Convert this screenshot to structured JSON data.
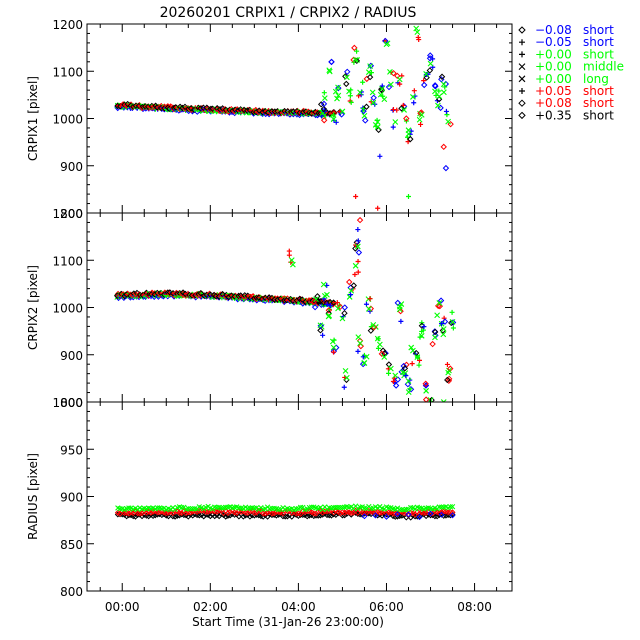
{
  "chart_data": {
    "title": "20260201 CRPIX1 / CRPIX2 / RADIUS",
    "xlabel": "Start Time (31-Jan-26 23:00:00)",
    "x_ticks": [
      "00:00",
      "02:00",
      "04:00",
      "06:00",
      "08:00"
    ],
    "x_range_hours": [
      -0.8,
      8.85
    ],
    "legend": {
      "placement": "right",
      "items": [
        {
          "symbol": "diamond",
          "color": "#0000ff",
          "offset": "−0.08",
          "length": "short"
        },
        {
          "symbol": "plus",
          "color": "#0000ff",
          "offset": "−0.05",
          "length": "short"
        },
        {
          "symbol": "plus",
          "color": "#00ff00",
          "offset": "+0.00",
          "length": "short"
        },
        {
          "symbol": "cross",
          "color": "#00ff00",
          "offset": "+0.00",
          "length": "middle"
        },
        {
          "symbol": "cross",
          "color": "#00ff00",
          "offset": "+0.00",
          "length": "long"
        },
        {
          "symbol": "plus",
          "color": "#ff0000",
          "offset": "+0.05",
          "length": "short"
        },
        {
          "symbol": "diamond",
          "color": "#ff0000",
          "offset": "+0.08",
          "length": "short"
        },
        {
          "symbol": "diamond",
          "color": "#000000",
          "offset": "+0.35",
          "length": "short"
        }
      ]
    },
    "panels": [
      {
        "ylabel": "CRPIX1 [pixel]",
        "ylim": [
          800,
          1200
        ],
        "y_ticks": [
          "800",
          "900",
          "1000",
          "1100",
          "1200"
        ],
        "trend": [
          [
            -0.1,
            1027
          ],
          [
            1.0,
            1022
          ],
          [
            2.0,
            1018
          ],
          [
            3.0,
            1014
          ],
          [
            4.0,
            1012
          ],
          [
            4.8,
            1011
          ]
        ],
        "scatter": [
          [
            4.55,
            1010
          ],
          [
            4.6,
            1040
          ],
          [
            4.7,
            1105
          ],
          [
            4.8,
            1000
          ],
          [
            4.9,
            1060
          ],
          [
            5.0,
            1020
          ],
          [
            5.1,
            1080
          ],
          [
            5.15,
            1050
          ],
          [
            5.3,
            1130
          ],
          [
            5.4,
            1060
          ],
          [
            5.5,
            1010
          ],
          [
            5.6,
            1100
          ],
          [
            5.7,
            1040
          ],
          [
            5.8,
            980
          ],
          [
            5.9,
            1060
          ],
          [
            6.0,
            1150
          ],
          [
            6.1,
            1080
          ],
          [
            6.2,
            1000
          ],
          [
            6.3,
            1090
          ],
          [
            6.4,
            1010
          ],
          [
            6.5,
            970
          ],
          [
            6.6,
            1040
          ],
          [
            6.7,
            1180
          ],
          [
            6.8,
            1000
          ],
          [
            6.9,
            1090
          ],
          [
            7.0,
            1120
          ],
          [
            7.1,
            1060
          ],
          [
            7.2,
            1040
          ],
          [
            7.3,
            1070
          ],
          [
            7.4,
            1000
          ]
        ],
        "outliers": [
          [
            5.3,
            835
          ],
          [
            5.8,
            810
          ],
          [
            5.85,
            920
          ],
          [
            6.5,
            835
          ],
          [
            6.45,
            1000
          ],
          [
            7.3,
            940
          ],
          [
            7.35,
            895
          ]
        ]
      },
      {
        "ylabel": "CRPIX2 [pixel]",
        "ylim": [
          800,
          1200
        ],
        "y_ticks": [
          "800",
          "900",
          "1000",
          "1100",
          "1200"
        ],
        "trend": [
          [
            -0.1,
            1025
          ],
          [
            1.0,
            1028
          ],
          [
            2.0,
            1025
          ],
          [
            3.0,
            1020
          ],
          [
            4.0,
            1014
          ],
          [
            4.8,
            1008
          ]
        ],
        "scatter": [
          [
            3.85,
            1105
          ],
          [
            4.4,
            1010
          ],
          [
            4.5,
            960
          ],
          [
            4.6,
            1030
          ],
          [
            4.7,
            990
          ],
          [
            4.8,
            920
          ],
          [
            4.9,
            1000
          ],
          [
            5.0,
            980
          ],
          [
            5.1,
            850
          ],
          [
            5.2,
            1040
          ],
          [
            5.3,
            1080
          ],
          [
            5.35,
            1130
          ],
          [
            5.4,
            920
          ],
          [
            5.5,
            880
          ],
          [
            5.6,
            1000
          ],
          [
            5.7,
            960
          ],
          [
            5.85,
            930
          ],
          [
            5.95,
            900
          ],
          [
            6.1,
            880
          ],
          [
            6.2,
            850
          ],
          [
            6.3,
            990
          ],
          [
            6.4,
            860
          ],
          [
            6.5,
            840
          ],
          [
            6.6,
            900
          ],
          [
            6.7,
            890
          ],
          [
            6.8,
            950
          ],
          [
            6.9,
            830
          ],
          [
            7.0,
            810
          ],
          [
            7.1,
            940
          ],
          [
            7.2,
            1000
          ],
          [
            7.3,
            960
          ],
          [
            7.4,
            860
          ],
          [
            7.5,
            975
          ]
        ],
        "outliers": [
          [
            5.4,
            1185
          ],
          [
            5.35,
            1165
          ],
          [
            6.9,
            805
          ],
          [
            7.3,
            800
          ]
        ]
      },
      {
        "ylabel": "RADIUS [pixel]",
        "ylim": [
          800,
          1000
        ],
        "y_ticks": [
          "800",
          "850",
          "900",
          "950",
          "1000"
        ],
        "bands": [
          {
            "color": "#000000",
            "points": [
              [
                -0.1,
                880
              ],
              [
                2.0,
                880
              ],
              [
                4.0,
                880
              ],
              [
                5.5,
                882
              ],
              [
                6.5,
                879
              ],
              [
                7.5,
                881
              ]
            ]
          },
          {
            "color": "#ff0000",
            "points": [
              [
                -0.1,
                883
              ],
              [
                2.0,
                884
              ],
              [
                4.0,
                883
              ],
              [
                5.5,
                884
              ],
              [
                6.5,
                882
              ],
              [
                7.5,
                884
              ]
            ]
          },
          {
            "color": "#00ff00",
            "points": [
              [
                -0.1,
                887
              ],
              [
                2.0,
                888
              ],
              [
                4.0,
                887
              ],
              [
                5.5,
                889
              ],
              [
                6.5,
                887
              ],
              [
                7.5,
                889
              ]
            ]
          }
        ]
      }
    ]
  }
}
